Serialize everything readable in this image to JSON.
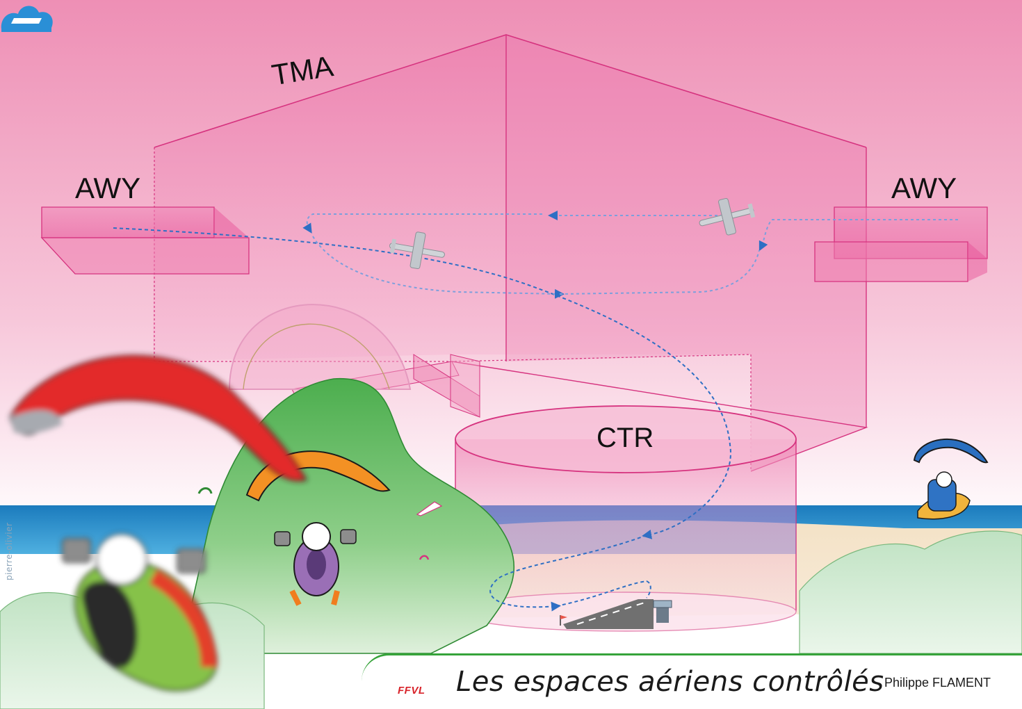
{
  "labels": {
    "tma": "TMA",
    "awy_left": "AWY",
    "awy_right": "AWY",
    "ctr": "CTR"
  },
  "credit": "pierre-olivier",
  "banner": {
    "logo_text": "FFVL",
    "title": "Les espaces aériens contrôlés",
    "author": "Philippe FLAMENT"
  },
  "colors": {
    "sky_top": "#ec8fb4",
    "airspace_pink": "#e9559a",
    "airspace_edge": "#d6337f",
    "sea": "#1a78b8",
    "hill_green": "#5cba5a",
    "flight_path": "#2e6fc4",
    "runway": "#707070",
    "banner_green": "#36a33a",
    "logo_blue": "#2a8fd6",
    "logo_red": "#d8232a"
  },
  "icons": [
    "airplane-icon",
    "paraglider-icon",
    "hang-glider-icon",
    "windsock-icon",
    "tower-icon",
    "ffvl-logo-icon"
  ]
}
